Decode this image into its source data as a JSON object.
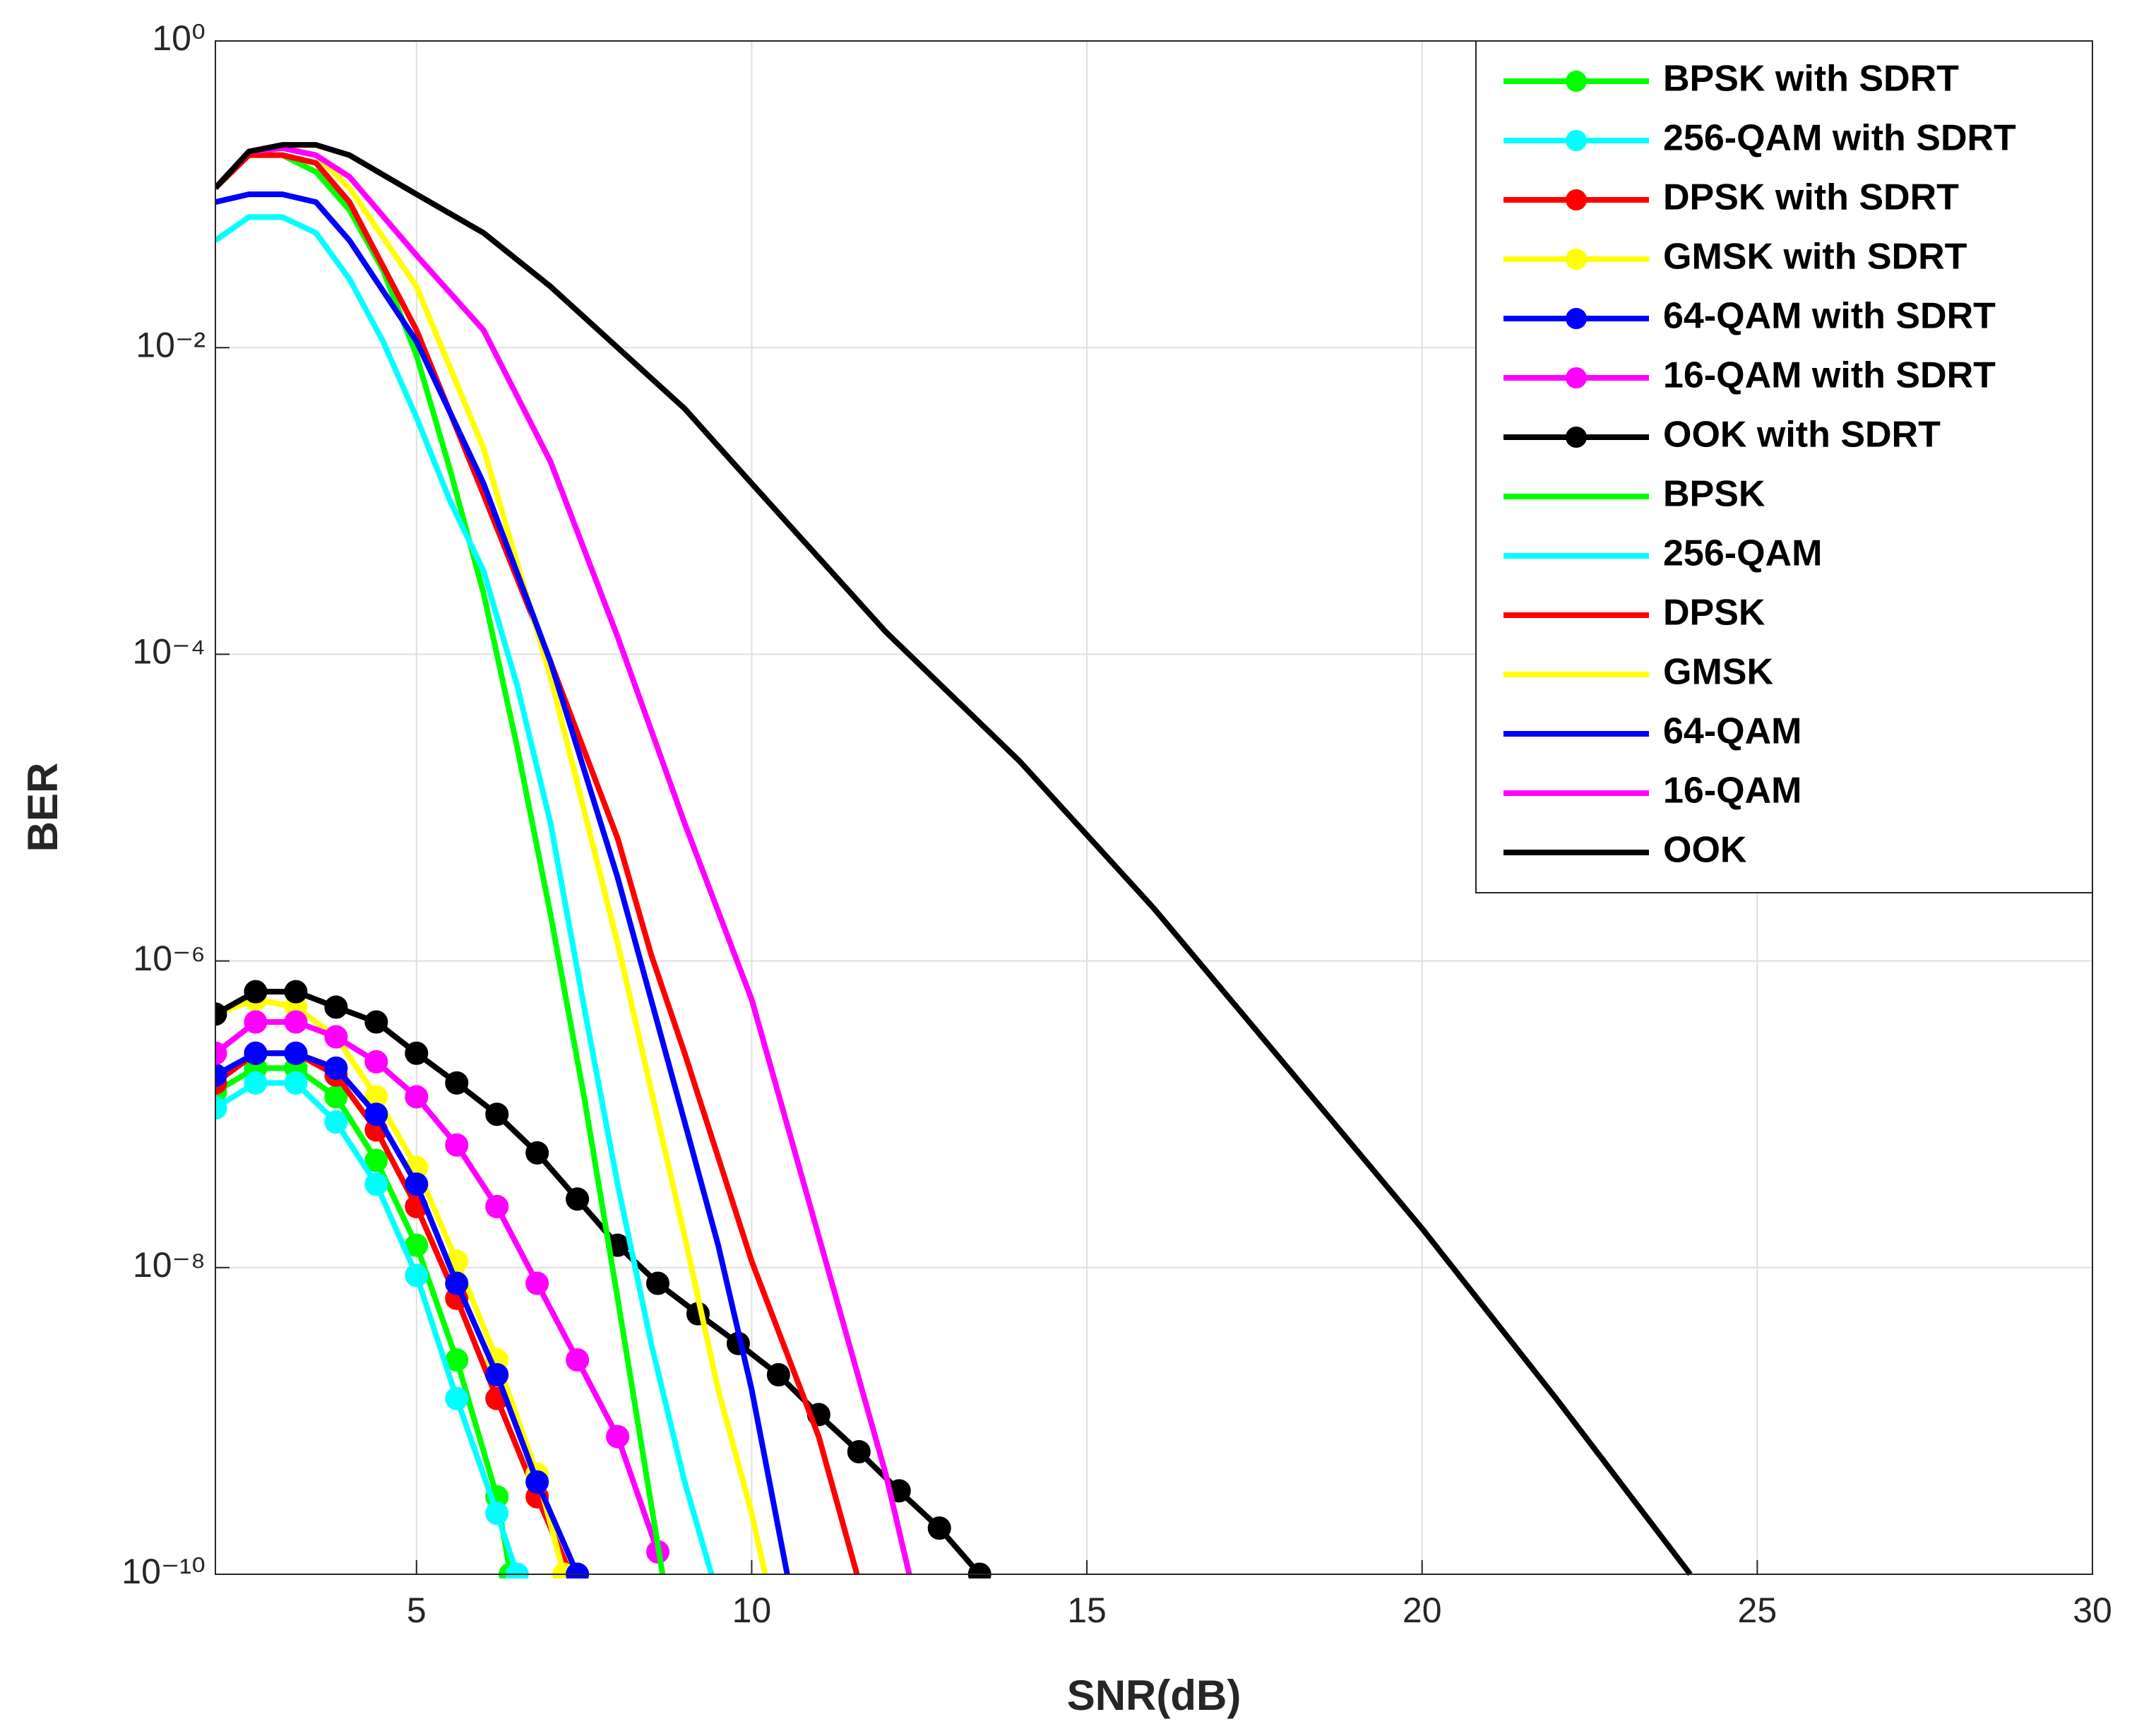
{
  "chart_data": {
    "type": "line",
    "xlabel": "SNR(dB)",
    "ylabel": "BER",
    "xlim": [
      2,
      30
    ],
    "xticks": [
      5,
      10,
      15,
      20,
      25,
      30
    ],
    "ylim": [
      1e-10,
      1
    ],
    "yscale": "log",
    "yticks": [
      {
        "value": 1e-10,
        "label": "10⁻¹⁰"
      },
      {
        "value": 1e-08,
        "label": "10⁻⁸"
      },
      {
        "value": 1e-06,
        "label": "10⁻⁶"
      },
      {
        "value": 0.0001,
        "label": "10⁻⁴"
      },
      {
        "value": 0.01,
        "label": "10⁻²"
      },
      {
        "value": 1,
        "label": "10⁰"
      }
    ],
    "grid": true,
    "legend": "northeast",
    "series": [
      {
        "name": "BPSK with SDRT",
        "color": "#00ff00",
        "marker": "o",
        "x": [
          2,
          2.6,
          3.2,
          3.8,
          4.4,
          5,
          5.6,
          6.2,
          6.4
        ],
        "values": [
          1.4e-07,
          2e-07,
          2e-07,
          1.3e-07,
          5e-08,
          1.4e-08,
          2.5e-09,
          3.2e-10,
          1e-10
        ]
      },
      {
        "name": "256-QAM with SDRT",
        "color": "#00ffff",
        "marker": "o",
        "x": [
          2,
          2.6,
          3.2,
          3.8,
          4.4,
          5,
          5.6,
          6.2,
          6.5
        ],
        "values": [
          1.1e-07,
          1.6e-07,
          1.6e-07,
          8.9e-08,
          3.5e-08,
          8.9e-09,
          1.4e-09,
          2.5e-10,
          1e-10
        ]
      },
      {
        "name": "DPSK with SDRT",
        "color": "#ff0000",
        "marker": "o",
        "x": [
          2,
          2.6,
          3.2,
          3.8,
          4.4,
          5,
          5.6,
          6.2,
          6.8,
          7.3
        ],
        "values": [
          1.6e-07,
          2.5e-07,
          2.5e-07,
          1.8e-07,
          7.9e-08,
          2.5e-08,
          6.3e-09,
          1.4e-09,
          3.2e-10,
          1e-10
        ]
      },
      {
        "name": "GMSK with SDRT",
        "color": "#ffff00",
        "marker": "o",
        "x": [
          2,
          2.6,
          3.2,
          3.8,
          4.4,
          5,
          5.6,
          6.2,
          6.8,
          7.2
        ],
        "values": [
          4.5e-07,
          5.6e-07,
          5e-07,
          3.2e-07,
          1.3e-07,
          4.5e-08,
          1.1e-08,
          2.5e-09,
          4.5e-10,
          1e-10
        ]
      },
      {
        "name": "64-QAM with SDRT",
        "color": "#0000ff",
        "marker": "o",
        "x": [
          2,
          2.6,
          3.2,
          3.8,
          4.4,
          5,
          5.6,
          6.2,
          6.8,
          7.4
        ],
        "values": [
          1.8e-07,
          2.5e-07,
          2.5e-07,
          2e-07,
          1e-07,
          3.5e-08,
          7.9e-09,
          2e-09,
          4e-10,
          1e-10
        ]
      },
      {
        "name": "16-QAM with SDRT",
        "color": "#ff00ff",
        "marker": "o",
        "x": [
          2,
          2.6,
          3.2,
          3.8,
          4.4,
          5,
          5.6,
          6.2,
          6.8,
          7.4,
          8,
          8.6
        ],
        "values": [
          2.5e-07,
          4e-07,
          4e-07,
          3.2e-07,
          2.2e-07,
          1.3e-07,
          6.3e-08,
          2.5e-08,
          7.9e-09,
          2.5e-09,
          7.9e-10,
          1.4e-10
        ]
      },
      {
        "name": "OOK with SDRT",
        "color": "#000000",
        "marker": "o",
        "x": [
          2,
          2.6,
          3.2,
          3.8,
          4.4,
          5,
          5.6,
          6.2,
          6.8,
          7.4,
          8,
          8.6,
          9.2,
          9.8,
          10.4,
          11,
          11.6,
          12.2,
          12.8,
          13.4
        ],
        "values": [
          4.5e-07,
          6.3e-07,
          6.3e-07,
          5e-07,
          4e-07,
          2.5e-07,
          1.6e-07,
          1e-07,
          5.6e-08,
          2.8e-08,
          1.4e-08,
          7.9e-09,
          5e-09,
          3.2e-09,
          2e-09,
          1.1e-09,
          6.3e-10,
          3.5e-10,
          2e-10,
          1e-10
        ]
      },
      {
        "name": "BPSK",
        "color": "#00ff00",
        "x": [
          2,
          2.5,
          3,
          3.5,
          4,
          4.5,
          5,
          5.5,
          6,
          6.5,
          7,
          7.5,
          8,
          8.67
        ],
        "values": [
          0.11,
          0.18,
          0.18,
          0.14,
          0.079,
          0.032,
          0.0089,
          0.0016,
          0.00025,
          2.5e-05,
          2e-06,
          1.3e-07,
          6.3e-09,
          1e-10
        ]
      },
      {
        "name": "256-QAM",
        "color": "#00ffff",
        "x": [
          2,
          2.5,
          3,
          3.5,
          4,
          4.5,
          5,
          5.5,
          6,
          6.5,
          7,
          7.5,
          8,
          8.5,
          9,
          9.4
        ],
        "values": [
          0.05,
          0.071,
          0.071,
          0.056,
          0.028,
          0.011,
          0.0035,
          0.001,
          0.00035,
          6.3e-05,
          7.9e-06,
          5e-07,
          3.5e-08,
          3.2e-09,
          4e-10,
          1e-10
        ]
      },
      {
        "name": "DPSK",
        "color": "#ff0000",
        "x": [
          2,
          2.5,
          3,
          3.5,
          4,
          5,
          6,
          7,
          8,
          8.5,
          9,
          10,
          11,
          11.57
        ],
        "values": [
          0.11,
          0.18,
          0.18,
          0.16,
          0.089,
          0.013,
          0.0011,
          8.9e-05,
          6.3e-06,
          1.1e-06,
          2.5e-07,
          1.1e-08,
          7.9e-10,
          1e-10
        ]
      },
      {
        "name": "GMSK",
        "color": "#ffff00",
        "x": [
          2,
          2.5,
          3,
          3.5,
          4,
          5,
          6,
          7,
          8,
          9,
          9.5,
          10,
          10.2
        ],
        "values": [
          0.11,
          0.19,
          0.2,
          0.18,
          0.11,
          0.025,
          0.0022,
          7.1e-05,
          1.3e-06,
          1.6e-08,
          1.6e-09,
          2.5e-10,
          1e-10
        ]
      },
      {
        "name": "64-QAM",
        "color": "#0000ff",
        "x": [
          2,
          2.5,
          3,
          3.5,
          4,
          5,
          6,
          7,
          8,
          9,
          9.5,
          10,
          10.53
        ],
        "values": [
          0.089,
          0.1,
          0.1,
          0.089,
          0.05,
          0.011,
          0.0013,
          8.9e-05,
          3.5e-06,
          8.9e-08,
          1.4e-08,
          1.6e-09,
          1e-10
        ]
      },
      {
        "name": "16-QAM",
        "color": "#ff00ff",
        "x": [
          2,
          2.5,
          3,
          3.5,
          4,
          5,
          6,
          7,
          8,
          9,
          10,
          11,
          12,
          12.35
        ],
        "values": [
          0.11,
          0.19,
          0.2,
          0.18,
          0.13,
          0.04,
          0.013,
          0.0018,
          0.00013,
          7.9e-06,
          5.6e-07,
          1.6e-08,
          4.5e-10,
          1e-10
        ]
      },
      {
        "name": "OOK",
        "color": "#000000",
        "x": [
          2,
          2.5,
          3,
          3.5,
          4,
          5,
          6,
          7,
          8,
          9,
          10,
          12,
          14,
          16,
          18,
          20,
          22,
          24
        ],
        "values": [
          0.11,
          0.19,
          0.21,
          0.21,
          0.18,
          0.1,
          0.056,
          0.025,
          0.01,
          0.004,
          0.0013,
          0.00014,
          2e-05,
          2.2e-06,
          2e-07,
          1.8e-08,
          1.4e-09,
          1e-10
        ]
      }
    ]
  }
}
